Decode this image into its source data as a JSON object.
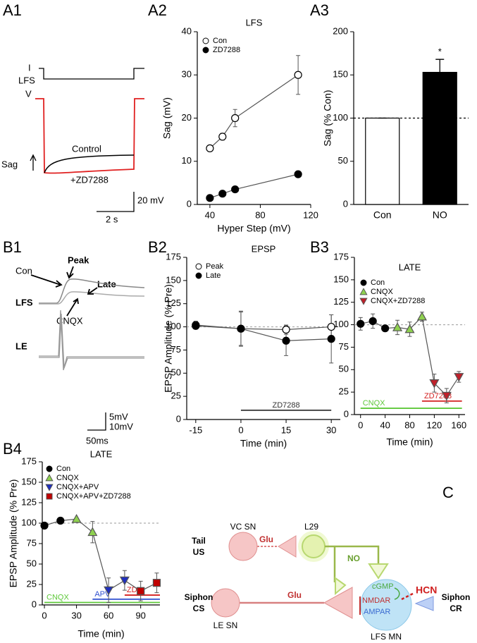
{
  "panel_labels": [
    "A1",
    "A2",
    "A3",
    "B1",
    "B2",
    "B3",
    "B4",
    "C"
  ],
  "a1": {
    "labels": [
      "I",
      "LFS",
      "V",
      "Sag",
      "Control",
      "+ZD7288"
    ],
    "scalebar": [
      "20 mV",
      "2 s"
    ]
  },
  "b1": {
    "labels": [
      "Con",
      "Peak",
      "Late",
      "LFS",
      "CNQX",
      "LE"
    ],
    "scalebar": [
      "5mV",
      "10mV",
      "50ms"
    ]
  },
  "chart_data": [
    {
      "type": "line",
      "title": "LFS",
      "xlabel": "Hyper Step (mV)",
      "ylabel": "Sag (mV)",
      "xlim": [
        30,
        120
      ],
      "xticks": [
        40,
        80,
        120
      ],
      "ylim": [
        0,
        40
      ],
      "yticks": [
        0,
        10,
        20,
        30,
        40
      ],
      "legend": "upper left",
      "series": [
        {
          "name": "Con",
          "color": "#000000",
          "fill": "#ffffff",
          "marker": "circle",
          "x": [
            40,
            50,
            60,
            110
          ],
          "values": [
            13,
            15.7,
            20,
            30
          ],
          "errors": [
            0.5,
            0.8,
            2,
            4.5
          ]
        },
        {
          "name": "ZD7288",
          "color": "#000000",
          "fill": "#000000",
          "marker": "circle",
          "x": [
            40,
            50,
            60,
            110
          ],
          "values": [
            1.5,
            2.5,
            3.5,
            7
          ],
          "errors": [
            0.3,
            0.3,
            0.3,
            0.5
          ]
        }
      ]
    },
    {
      "type": "bar",
      "ylabel": "Sag (% Con)",
      "ylim": [
        0,
        200
      ],
      "yticks": [
        0,
        50,
        100,
        150,
        200
      ],
      "categories": [
        "Con",
        "NO"
      ],
      "values": [
        100,
        153
      ],
      "errors": [
        0,
        15
      ],
      "colors": [
        "#ffffff",
        "#000000"
      ],
      "reference_line": 100,
      "annotation": "*"
    },
    {
      "type": "line",
      "title": "EPSP",
      "xlabel": "Time (min)",
      "ylabel": "EPSP Amplitude (% Pre)",
      "xlim": [
        -18,
        33
      ],
      "xticks": [
        -15,
        0,
        15,
        30
      ],
      "ylim": [
        0,
        175
      ],
      "yticks": [
        0,
        25,
        50,
        75,
        100,
        125,
        150,
        175
      ],
      "legend": "upper left",
      "reference_line": 100,
      "series": [
        {
          "name": "Peak",
          "color": "#000000",
          "fill": "#ffffff",
          "marker": "circle",
          "x": [
            -15,
            0,
            15,
            30
          ],
          "values": [
            102,
            98,
            97,
            100
          ],
          "errors": [
            4,
            19,
            5,
            13
          ]
        },
        {
          "name": "Late",
          "color": "#000000",
          "fill": "#000000",
          "marker": "circle",
          "x": [
            -15,
            0,
            15,
            30
          ],
          "values": [
            101,
            98,
            85,
            87
          ],
          "errors": [
            3,
            18,
            16,
            26
          ]
        }
      ],
      "drug_bars": [
        {
          "label": "ZD7288",
          "color": "#333333",
          "x": [
            0,
            30
          ],
          "y": 10
        }
      ]
    },
    {
      "type": "line",
      "title": "LATE",
      "xlabel": "Time (min)",
      "xlim": [
        -10,
        170
      ],
      "xticks": [
        0,
        40,
        80,
        120,
        160
      ],
      "ylim": [
        0,
        175
      ],
      "yticks": [
        0,
        25,
        50,
        75,
        100,
        125,
        150,
        175
      ],
      "legend": "upper left",
      "reference_line": 100,
      "series": [
        {
          "name": "Con",
          "color": "#000000",
          "fill": "#000000",
          "marker": "circle",
          "x": [
            0,
            20,
            40
          ],
          "values": [
            101,
            104,
            96
          ],
          "errors": [
            7,
            8,
            2
          ]
        },
        {
          "name": "CNQX",
          "color": "#555555",
          "fill": "#8fd14f",
          "marker": "triangle-up",
          "x": [
            60,
            80,
            100
          ],
          "values": [
            97,
            95,
            109
          ],
          "errors": [
            8,
            8,
            5
          ]
        },
        {
          "name": "CNQX+ZD7288",
          "color": "#555555",
          "fill": "#c0202a",
          "marker": "triangle-down",
          "x": [
            120,
            140,
            160
          ],
          "values": [
            35,
            21,
            42
          ],
          "errors": [
            10,
            8,
            6
          ]
        }
      ],
      "drug_bars": [
        {
          "label": "ZD7288",
          "color": "#d42020",
          "x": [
            100,
            165
          ],
          "y": 15
        },
        {
          "label": "CNQX",
          "color": "#5ec83a",
          "x": [
            0,
            165
          ],
          "y": 7
        }
      ]
    },
    {
      "type": "line",
      "title": "LATE",
      "xlabel": "Time (min)",
      "ylabel": "EPSP Amplitude (% Pre)",
      "xlim": [
        -2,
        108
      ],
      "xticks": [
        0,
        30,
        60,
        90
      ],
      "ylim": [
        0,
        175
      ],
      "yticks": [
        0,
        25,
        50,
        75,
        100,
        125,
        150,
        175
      ],
      "legend": "upper left",
      "reference_line": 100,
      "series": [
        {
          "name": "Con",
          "color": "#000000",
          "fill": "#000000",
          "marker": "circle",
          "x": [
            0,
            15
          ],
          "values": [
            97,
            103
          ],
          "errors": [
            2,
            3
          ]
        },
        {
          "name": "CNQX",
          "color": "#555555",
          "fill": "#8fd14f",
          "marker": "triangle-up",
          "x": [
            30,
            45
          ],
          "values": [
            105,
            89
          ],
          "errors": [
            1,
            13
          ]
        },
        {
          "name": "CNQX+APV",
          "color": "#555555",
          "fill": "#1f2fbf",
          "marker": "triangle-down",
          "x": [
            60,
            75
          ],
          "values": [
            18,
            30
          ],
          "errors": [
            15,
            12
          ]
        },
        {
          "name": "CNQX+APV+ZD7288",
          "color": "#555555",
          "fill": "#c00000",
          "marker": "square",
          "x": [
            90,
            105
          ],
          "values": [
            17,
            27
          ],
          "errors": [
            12,
            12
          ]
        }
      ],
      "drug_bars": [
        {
          "label": "CNQX",
          "color": "#5ec83a",
          "x": [
            0,
            108
          ],
          "y": 3
        },
        {
          "label": "APV",
          "color": "#3050d0",
          "x": [
            45,
            108
          ],
          "y": 7
        },
        {
          "label": "ZD",
          "color": "#d42020",
          "x": [
            75,
            108
          ],
          "y": 12
        }
      ]
    }
  ],
  "diagram": {
    "labels": [
      "VC SN",
      "Tail",
      "US",
      "Glu",
      "L29",
      "NO",
      "Siphon",
      "CS",
      "Glu",
      "LE SN",
      "cGMP",
      "NMDAR",
      "AMPAR",
      "HCN",
      "Siphon",
      "CR",
      "LFS MN"
    ]
  }
}
